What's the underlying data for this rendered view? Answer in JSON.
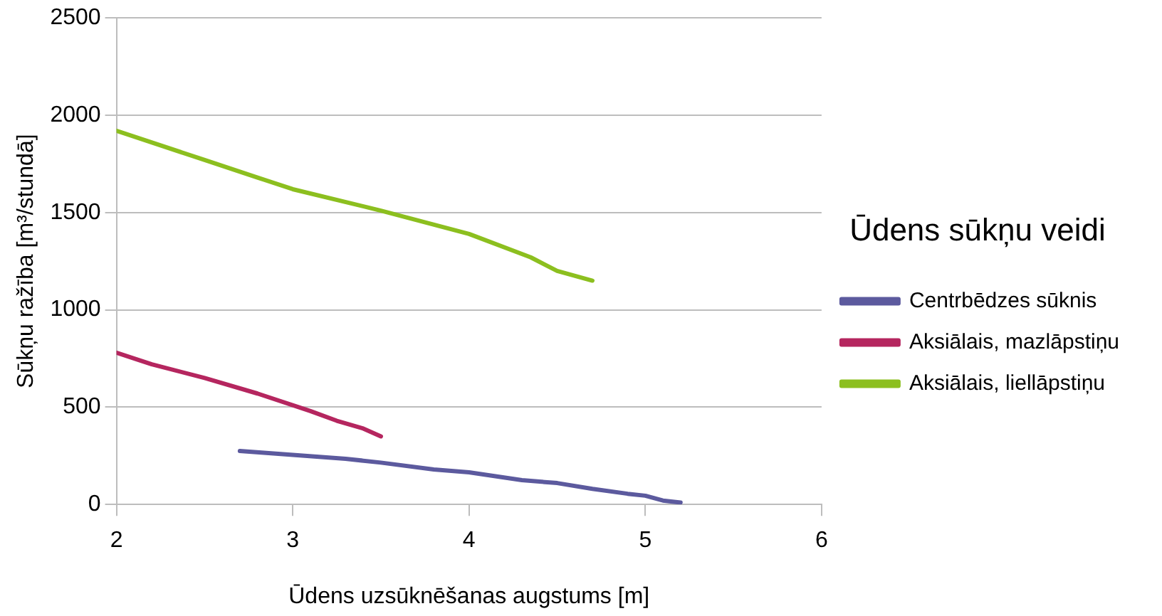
{
  "chart_data": {
    "type": "line",
    "xlabel": "Ūdens uzsūknēšanas augstums [m]",
    "ylabel": "Sūkņu ražība [m³/stundā]",
    "legend_title": "Ūdens sūkņu veidi",
    "legend": "right",
    "grid": "y",
    "marker": "none",
    "line_style": "solid",
    "xlim": [
      2,
      6
    ],
    "xticks": [
      2,
      3,
      4,
      5,
      6
    ],
    "ylim": [
      0,
      2500
    ],
    "yticks": [
      0,
      500,
      1000,
      1500,
      2000,
      2500
    ],
    "series": [
      {
        "name": "Centrbēdzes sūknis",
        "color": "#5c5a9e",
        "x": [
          2.7,
          3.0,
          3.3,
          3.5,
          3.8,
          4.0,
          4.3,
          4.5,
          4.7,
          4.9,
          5.0,
          5.1,
          5.2
        ],
        "values": [
          275,
          255,
          235,
          215,
          180,
          165,
          125,
          110,
          80,
          55,
          45,
          20,
          10
        ]
      },
      {
        "name": "Aksiālais, mazlāpstiņu",
        "color": "#b5265f",
        "x": [
          2.0,
          2.2,
          2.5,
          2.8,
          3.1,
          3.25,
          3.4,
          3.5
        ],
        "values": [
          780,
          720,
          650,
          570,
          480,
          430,
          390,
          350
        ]
      },
      {
        "name": "Aksiālais, liellāpstiņu",
        "color": "#8cbf1f",
        "x": [
          2.0,
          2.5,
          2.8,
          3.0,
          3.5,
          4.0,
          4.35,
          4.5,
          4.7
        ],
        "values": [
          1920,
          1770,
          1680,
          1620,
          1510,
          1390,
          1270,
          1200,
          1150
        ]
      }
    ]
  }
}
